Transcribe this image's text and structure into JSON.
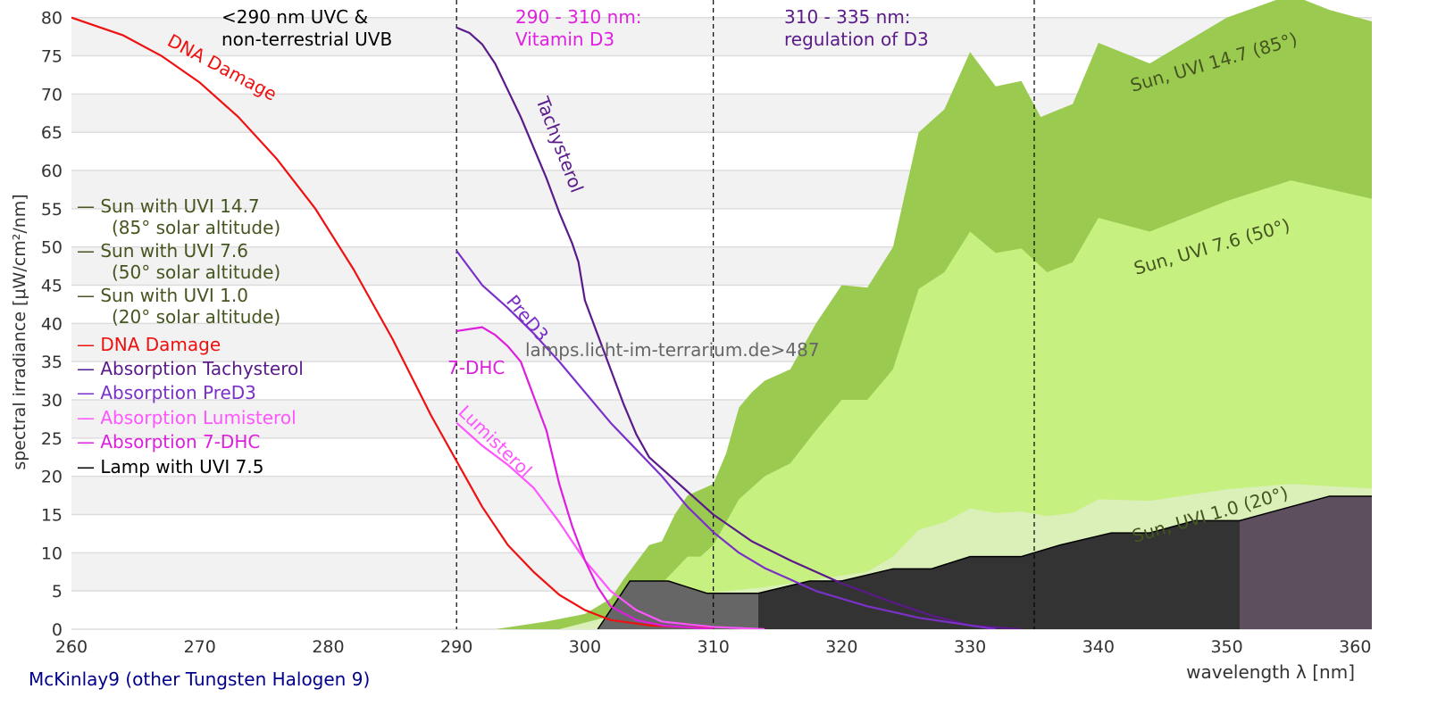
{
  "chart_data": {
    "type": "area",
    "xlabel": "wavelength λ [nm]",
    "ylabel": "spectral irradiance [μW/cm²/nm]",
    "xlim": [
      260,
      361.3
    ],
    "ylim": [
      0,
      82.3
    ],
    "xticks": [
      260,
      270,
      280,
      290,
      300,
      310,
      320,
      330,
      340,
      350,
      360
    ],
    "yticks": [
      0,
      5,
      10,
      15,
      20,
      25,
      30,
      35,
      40,
      45,
      50,
      55,
      60,
      65,
      70,
      75,
      80
    ],
    "grid": "horizontal bands",
    "vlines": [
      290,
      310,
      335
    ],
    "regions": [
      {
        "label_lines": [
          "<290 nm UVC &",
          "non-terrestrial UVB"
        ],
        "color": "#000000"
      },
      {
        "label_lines": [
          "290 - 310 nm:",
          "Vitamin D3"
        ],
        "color": "#e020e0"
      },
      {
        "label_lines": [
          "310 - 335 nm:",
          "regulation of D3"
        ],
        "color": "#5a1a8a"
      }
    ],
    "series": [
      {
        "name": "Sun with UVI 14.7",
        "legend_sub": "(85° solar altitude)",
        "label": "Sun, UVI 14.7 (85°)",
        "kind": "area",
        "color": "#9acb50",
        "x": [
          293,
          297,
          300,
          302,
          303,
          305,
          306,
          307,
          308,
          310,
          311,
          312,
          313,
          314,
          316,
          318,
          320,
          322,
          324,
          326,
          328,
          330,
          332,
          334,
          335.5,
          338,
          340,
          344,
          350,
          355,
          358,
          361.3
        ],
        "y": [
          0,
          1,
          2,
          4,
          6.5,
          11,
          11.5,
          15,
          17.5,
          19,
          23,
          29,
          31,
          32.5,
          34,
          40,
          45,
          44.7,
          50,
          65,
          68,
          75.5,
          71,
          71.7,
          67,
          68.7,
          76.7,
          74,
          80,
          83,
          81,
          79.5
        ]
      },
      {
        "name": "Sun with UVI 7.6",
        "legend_sub": "(50° solar altitude)",
        "label": "Sun, UVI 7.6 (50°)",
        "kind": "area",
        "color": "#c6f080",
        "x": [
          300,
          302,
          304,
          306,
          308,
          309,
          310,
          312,
          314,
          316,
          318,
          320,
          322,
          324,
          326,
          328,
          330,
          332,
          334,
          336,
          338,
          340,
          344,
          350,
          355,
          361.3
        ],
        "y": [
          0,
          2,
          4,
          6,
          9.5,
          9.5,
          11,
          17,
          20,
          21.7,
          26,
          30,
          30,
          34,
          44.5,
          46.7,
          52,
          49.2,
          49.8,
          46.7,
          48,
          53.8,
          52,
          56,
          58.7,
          56.3
        ]
      },
      {
        "name": "Sun with UVI 1.0",
        "legend_sub": "(20° solar altitude)",
        "label": "Sun, UVI 1.0 (20°)",
        "kind": "area",
        "color": "#dbefb9",
        "x": [
          298,
          305,
          310,
          314,
          318,
          322,
          324,
          326,
          328,
          330,
          332,
          334,
          336,
          338,
          340,
          344,
          350,
          355,
          361.3
        ],
        "y": [
          0,
          3,
          4.8,
          5.5,
          6.5,
          7.5,
          9.5,
          13,
          14,
          15.8,
          15.2,
          15.4,
          14.8,
          15.2,
          17,
          16.8,
          18.3,
          19,
          18.4
        ]
      },
      {
        "name": "Lamp with UVI 7.5",
        "kind": "area",
        "color": "#333333",
        "x": [
          301,
          303.5,
          306.5,
          309.5,
          313.5,
          317.5,
          320,
          324,
          327,
          330,
          334,
          337,
          341,
          344,
          347.5,
          351,
          358,
          361.3
        ],
        "y": [
          0,
          6.3,
          6.3,
          4.7,
          4.7,
          6.3,
          6.3,
          7.9,
          7.9,
          9.5,
          9.5,
          11,
          12.6,
          12.6,
          14.2,
          14.2,
          17.4,
          17.4
        ]
      },
      {
        "name": "DNA Damage",
        "label": "DNA Damage",
        "kind": "line",
        "color": "#ee1111",
        "x": [
          260,
          264,
          267,
          270,
          273,
          276,
          279,
          282,
          285,
          288,
          290,
          292,
          294,
          296,
          298,
          300,
          302,
          305,
          310
        ],
        "y": [
          80,
          77.7,
          75,
          71.5,
          67,
          61.5,
          55,
          47,
          38,
          28,
          22,
          16,
          11,
          7.5,
          4.5,
          2.5,
          1.2,
          0.5,
          0.1
        ]
      },
      {
        "name": "Absorption Tachysterol",
        "label": "Tachysterol",
        "kind": "line",
        "color": "#5a1a8a",
        "x": [
          290,
          291,
          292,
          293,
          294,
          295,
          296,
          297,
          298,
          299,
          299.5,
          300,
          301,
          302,
          303,
          304,
          305,
          307,
          310,
          313,
          316,
          320,
          324,
          327,
          330,
          334
        ],
        "y": [
          78.7,
          78,
          76.5,
          74,
          70.5,
          67,
          63,
          59,
          54.5,
          50.5,
          48,
          43,
          38.5,
          34,
          29.5,
          25.5,
          22.5,
          19.5,
          15,
          11.5,
          9,
          6,
          3.5,
          1.8,
          0.5,
          0
        ]
      },
      {
        "name": "Absorption PreD3",
        "label": "PreD3",
        "kind": "line",
        "color": "#7b30c8",
        "x": [
          290,
          292,
          294,
          296,
          298,
          300,
          302,
          304,
          306,
          308,
          310,
          312,
          314,
          318,
          322,
          326,
          330,
          332
        ],
        "y": [
          49.5,
          45,
          42,
          38.7,
          35,
          31,
          27,
          23.5,
          20,
          16,
          12.7,
          10,
          8,
          5,
          3,
          1.5,
          0.5,
          0
        ]
      },
      {
        "name": "Absorption Lumisterol",
        "label": "Lumisterol",
        "kind": "line",
        "color": "#ff55ff",
        "x": [
          290,
          292,
          294,
          296,
          298,
          300,
          302,
          304,
          306,
          310,
          314
        ],
        "y": [
          27,
          24,
          21.5,
          18.5,
          14,
          9,
          5,
          2.5,
          1,
          0.3,
          0
        ]
      },
      {
        "name": "Absorption 7-DHC",
        "label": "7-DHC",
        "kind": "line",
        "color": "#dd1fdd",
        "x": [
          290,
          292,
          293,
          294,
          295,
          296,
          297,
          298,
          299,
          300,
          301,
          302,
          304,
          306,
          310
        ],
        "y": [
          39,
          39.5,
          38.5,
          37,
          35,
          30.5,
          26,
          19,
          13.5,
          9,
          5.5,
          3,
          1.2,
          0.5,
          0
        ]
      }
    ],
    "watermark": "lamps.licht-im-terrarium.de>487",
    "caption": "McKinlay9 (other Tungsten Halogen 9)",
    "legend_placement": "left"
  }
}
